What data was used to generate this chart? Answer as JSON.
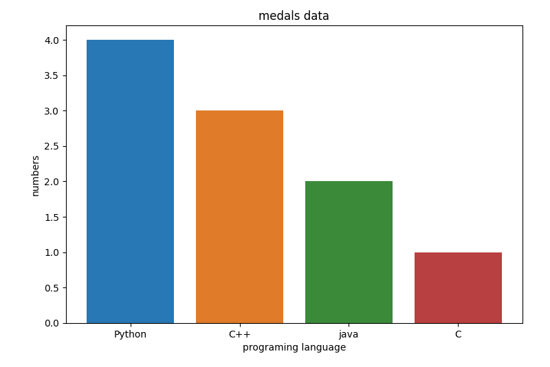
{
  "categories": [
    "Python",
    "C++",
    "java",
    "C"
  ],
  "values": [
    4,
    3,
    2,
    1
  ],
  "bar_colors": [
    "#2878b5",
    "#e07b2a",
    "#3a8a3a",
    "#b94040"
  ],
  "title": "medals data",
  "xlabel": "programing language",
  "ylabel": "numbers",
  "ylim": [
    0,
    4.2
  ],
  "title_fontsize": 12,
  "label_fontsize": 10,
  "figsize": [
    8.0,
    5.35
  ],
  "dpi": 100
}
